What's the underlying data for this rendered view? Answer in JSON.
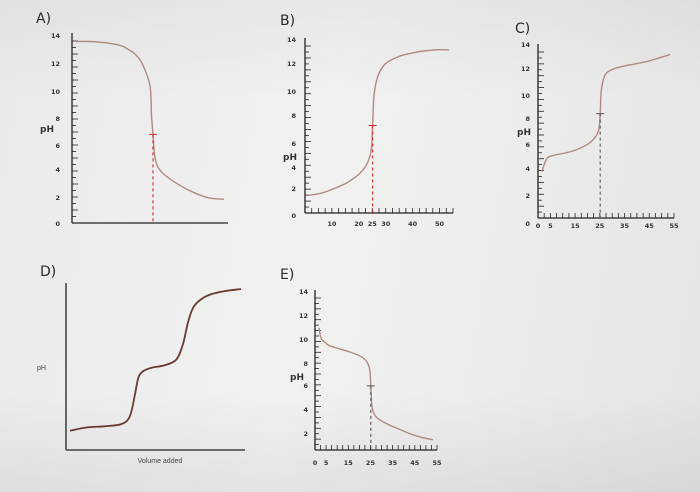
{
  "chart_data": [
    {
      "type": "line",
      "label": "A)",
      "ylabel": "pH",
      "xlabel": "",
      "yticks": [
        "0",
        "2",
        "4",
        "6",
        "8",
        "10",
        "12",
        "14"
      ],
      "xticks": [],
      "ylim": [
        0,
        14
      ],
      "x": [
        0,
        0.1,
        0.2,
        0.3,
        0.35,
        0.4,
        0.45,
        0.5,
        0.51,
        0.52,
        0.53,
        0.55,
        0.6,
        0.7,
        0.8,
        0.9,
        1.0
      ],
      "y": [
        13.8,
        13.8,
        13.7,
        13.5,
        13.2,
        12.8,
        12.0,
        10.3,
        8.0,
        6.5,
        5.0,
        4.0,
        3.3,
        2.5,
        1.9,
        1.5,
        1.4
      ],
      "equivalence_x": 0.52
    },
    {
      "type": "line",
      "label": "B)",
      "ylabel": "pH",
      "xlabel": "",
      "yticks": [
        "0",
        "2",
        "4",
        "6",
        "8",
        "10",
        "12",
        "14"
      ],
      "xticks": [
        "10",
        "20",
        "25",
        "30",
        "40",
        "50"
      ],
      "ylim": [
        0,
        14
      ],
      "xlim": [
        0,
        55
      ],
      "x": [
        0,
        5,
        10,
        15,
        20,
        23,
        24.5,
        25,
        25.5,
        27,
        30,
        35,
        40,
        45,
        50,
        55
      ],
      "y": [
        1.0,
        1.2,
        1.6,
        2.1,
        2.9,
        3.8,
        5.0,
        7.0,
        9.5,
        11.2,
        12.3,
        12.9,
        13.2,
        13.4,
        13.5,
        13.5
      ],
      "equivalence_x": 25
    },
    {
      "type": "line",
      "label": "C)",
      "ylabel": "pH",
      "xlabel": "",
      "yticks": [
        "0",
        "2",
        "4",
        "6",
        "8",
        "10",
        "12",
        "14"
      ],
      "xticks": [
        "0",
        "5",
        "15",
        "25",
        "35",
        "45",
        "55"
      ],
      "ylim": [
        0,
        14
      ],
      "xlim": [
        0,
        55
      ],
      "x": [
        0,
        2,
        5,
        10,
        15,
        20,
        23,
        24.5,
        25,
        25.5,
        27,
        30,
        35,
        40,
        45,
        50,
        55
      ],
      "y": [
        3.5,
        4.6,
        4.9,
        5.1,
        5.4,
        5.9,
        6.5,
        7.2,
        8.5,
        10.5,
        11.8,
        12.3,
        12.6,
        12.8,
        13.0,
        13.3,
        13.6
      ],
      "equivalence_x": 25
    },
    {
      "type": "line",
      "label": "D)",
      "ylabel": "pH",
      "xlabel": "Volume added",
      "yticks": [],
      "xticks": [],
      "ylim": [
        0,
        14
      ],
      "x": [
        0,
        0.1,
        0.2,
        0.3,
        0.35,
        0.38,
        0.4,
        0.43,
        0.48,
        0.55,
        0.62,
        0.66,
        0.69,
        0.72,
        0.76,
        0.82,
        0.9,
        1.0
      ],
      "y": [
        1.2,
        1.5,
        1.6,
        1.8,
        2.5,
        4.5,
        6.0,
        6.6,
        6.9,
        7.1,
        7.6,
        9.0,
        11.0,
        12.3,
        13.0,
        13.5,
        13.8,
        14.0
      ],
      "equivalence_x": null
    },
    {
      "type": "line",
      "label": "E)",
      "ylabel": "pH",
      "xlabel": "",
      "yticks": [
        "2",
        "4",
        "6",
        "8",
        "10",
        "12",
        "14"
      ],
      "xticks": [
        "0",
        "5",
        "15",
        "25",
        "35",
        "45",
        "55"
      ],
      "ylim": [
        0,
        14
      ],
      "xlim": [
        0,
        55
      ],
      "x": [
        0,
        1,
        3,
        5,
        10,
        15,
        20,
        23,
        24.5,
        25,
        25.5,
        27,
        30,
        35,
        40,
        45,
        50,
        55
      ],
      "y": [
        11.0,
        10.0,
        9.6,
        9.3,
        9.0,
        8.7,
        8.3,
        7.8,
        7.0,
        5.5,
        3.6,
        2.7,
        2.2,
        1.7,
        1.3,
        0.9,
        0.6,
        0.4
      ],
      "equivalence_x": 25
    }
  ],
  "colors": {
    "axis": "#222222",
    "curve": "#b08a80",
    "equivalence": "#cc2a2a"
  }
}
